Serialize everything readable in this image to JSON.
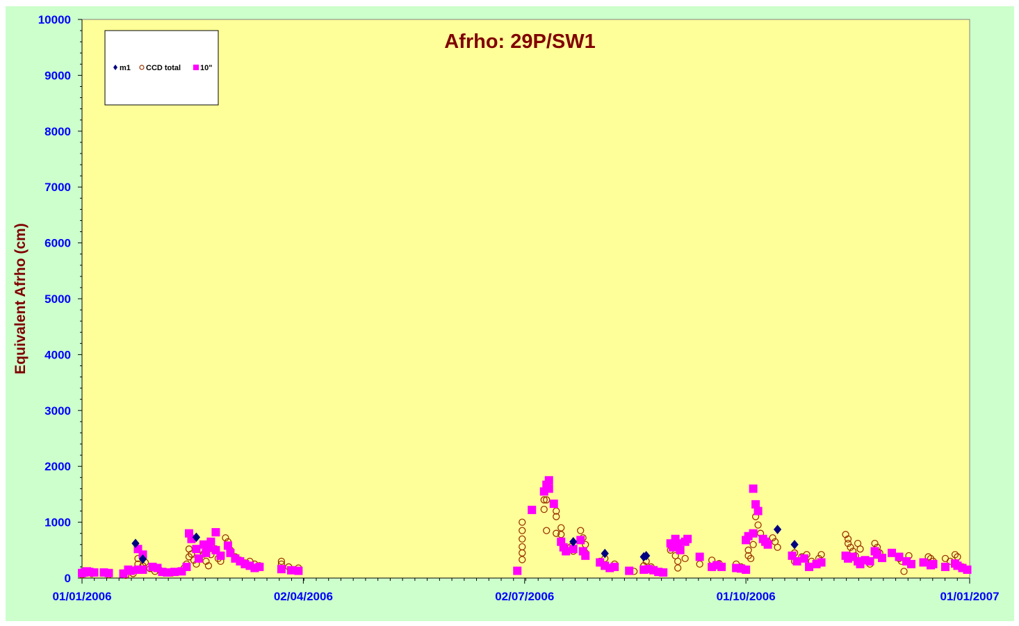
{
  "colors": {
    "chart_background": "#ccffcc",
    "plot_background": "#ffff99",
    "title": "#800000",
    "axis_label": "#800000",
    "tick_label": "#0000ff",
    "m1": "#000080",
    "ccd_total": "#993300",
    "ten_inch": "#ff00ff"
  },
  "chart_data": {
    "type": "scatter",
    "title": "Afrho: 29P/SW1",
    "xlabel": "",
    "ylabel": "Equivalent Afrho (cm)",
    "xlim": [
      "2006-01-01",
      "2007-01-01"
    ],
    "ylim": [
      0,
      10000
    ],
    "x_ticks": [
      "01/01/2006",
      "02/04/2006",
      "02/07/2006",
      "01/10/2006",
      "01/01/2007"
    ],
    "y_ticks": [
      "0",
      "1000",
      "2000",
      "3000",
      "4000",
      "5000",
      "6000",
      "7000",
      "8000",
      "9000",
      "10000"
    ],
    "grid": false,
    "legend_position": "top-left",
    "series": [
      {
        "name": "m1",
        "marker": "diamond",
        "color": "#000080",
        "points": [
          [
            "2006-01-23",
            620
          ],
          [
            "2006-01-26",
            340
          ],
          [
            "2006-02-17",
            730
          ],
          [
            "2006-07-22",
            650
          ],
          [
            "2006-08-04",
            440
          ],
          [
            "2006-08-20",
            380
          ],
          [
            "2006-08-21",
            400
          ],
          [
            "2006-10-14",
            870
          ],
          [
            "2006-10-21",
            600
          ]
        ]
      },
      {
        "name": "CCD total",
        "marker": "circle",
        "color": "#993300",
        "points": [
          [
            "2006-01-01",
            60
          ],
          [
            "2006-01-03",
            90
          ],
          [
            "2006-01-05",
            80
          ],
          [
            "2006-01-06",
            110
          ],
          [
            "2006-01-12",
            60
          ],
          [
            "2006-01-19",
            50
          ],
          [
            "2006-01-22",
            80
          ],
          [
            "2006-01-24",
            250
          ],
          [
            "2006-01-24",
            350
          ],
          [
            "2006-01-26",
            150
          ],
          [
            "2006-01-26",
            220
          ],
          [
            "2006-01-27",
            280
          ],
          [
            "2006-01-29",
            170
          ],
          [
            "2006-01-31",
            120
          ],
          [
            "2006-02-02",
            140
          ],
          [
            "2006-02-04",
            100
          ],
          [
            "2006-02-07",
            90
          ],
          [
            "2006-02-10",
            110
          ],
          [
            "2006-02-12",
            180
          ],
          [
            "2006-02-13",
            250
          ],
          [
            "2006-02-14",
            380
          ],
          [
            "2006-02-14",
            520
          ],
          [
            "2006-02-15",
            430
          ],
          [
            "2006-02-16",
            320
          ],
          [
            "2006-02-17",
            250
          ],
          [
            "2006-02-19",
            500
          ],
          [
            "2006-02-20",
            430
          ],
          [
            "2006-02-21",
            300
          ],
          [
            "2006-02-22",
            220
          ],
          [
            "2006-02-23",
            420
          ],
          [
            "2006-02-25",
            520
          ],
          [
            "2006-02-26",
            350
          ],
          [
            "2006-02-27",
            300
          ],
          [
            "2006-03-01",
            720
          ],
          [
            "2006-03-02",
            650
          ],
          [
            "2006-03-03",
            500
          ],
          [
            "2006-03-05",
            380
          ],
          [
            "2006-03-07",
            320
          ],
          [
            "2006-03-09",
            270
          ],
          [
            "2006-03-11",
            300
          ],
          [
            "2006-03-13",
            250
          ],
          [
            "2006-03-15",
            220
          ],
          [
            "2006-03-24",
            300
          ],
          [
            "2006-03-24",
            250
          ],
          [
            "2006-03-27",
            200
          ],
          [
            "2006-03-31",
            180
          ],
          [
            "2006-07-01",
            1000
          ],
          [
            "2006-07-01",
            850
          ],
          [
            "2006-07-01",
            700
          ],
          [
            "2006-07-01",
            560
          ],
          [
            "2006-07-01",
            450
          ],
          [
            "2006-07-01",
            330
          ],
          [
            "2006-07-10",
            1400
          ],
          [
            "2006-07-10",
            1230
          ],
          [
            "2006-07-11",
            850
          ],
          [
            "2006-07-11",
            1400
          ],
          [
            "2006-07-15",
            1200
          ],
          [
            "2006-07-15",
            1100
          ],
          [
            "2006-07-15",
            800
          ],
          [
            "2006-07-17",
            900
          ],
          [
            "2006-07-17",
            780
          ],
          [
            "2006-07-21",
            560
          ],
          [
            "2006-07-22",
            480
          ],
          [
            "2006-07-25",
            850
          ],
          [
            "2006-07-26",
            720
          ],
          [
            "2006-07-27",
            600
          ],
          [
            "2006-07-27",
            450
          ],
          [
            "2006-08-02",
            300
          ],
          [
            "2006-08-04",
            350
          ],
          [
            "2006-08-08",
            250
          ],
          [
            "2006-08-16",
            120
          ],
          [
            "2006-08-20",
            220
          ],
          [
            "2006-08-21",
            300
          ],
          [
            "2006-08-23",
            200
          ],
          [
            "2006-08-27",
            120
          ],
          [
            "2006-08-31",
            500
          ],
          [
            "2006-09-02",
            400
          ],
          [
            "2006-09-03",
            300
          ],
          [
            "2006-09-03",
            180
          ],
          [
            "2006-09-06",
            350
          ],
          [
            "2006-09-12",
            250
          ],
          [
            "2006-09-17",
            320
          ],
          [
            "2006-09-20",
            260
          ],
          [
            "2006-09-21",
            200
          ],
          [
            "2006-09-27",
            250
          ],
          [
            "2006-09-29",
            200
          ],
          [
            "2006-10-02",
            500
          ],
          [
            "2006-10-02",
            400
          ],
          [
            "2006-10-03",
            350
          ],
          [
            "2006-10-04",
            600
          ],
          [
            "2006-10-05",
            1100
          ],
          [
            "2006-10-06",
            950
          ],
          [
            "2006-10-07",
            800
          ],
          [
            "2006-10-08",
            700
          ],
          [
            "2006-10-10",
            600
          ],
          [
            "2006-10-12",
            720
          ],
          [
            "2006-10-13",
            650
          ],
          [
            "2006-10-14",
            550
          ],
          [
            "2006-10-21",
            450
          ],
          [
            "2006-10-21",
            300
          ],
          [
            "2006-10-24",
            380
          ],
          [
            "2006-10-26",
            420
          ],
          [
            "2006-10-28",
            300
          ],
          [
            "2006-10-31",
            350
          ],
          [
            "2006-11-01",
            420
          ],
          [
            "2006-11-11",
            780
          ],
          [
            "2006-11-12",
            700
          ],
          [
            "2006-11-12",
            620
          ],
          [
            "2006-11-13",
            550
          ],
          [
            "2006-11-14",
            480
          ],
          [
            "2006-11-15",
            400
          ],
          [
            "2006-11-16",
            620
          ],
          [
            "2006-11-17",
            520
          ],
          [
            "2006-11-20",
            300
          ],
          [
            "2006-11-21",
            250
          ],
          [
            "2006-11-23",
            620
          ],
          [
            "2006-11-24",
            550
          ],
          [
            "2006-11-25",
            450
          ],
          [
            "2006-12-03",
            350
          ],
          [
            "2006-12-04",
            300
          ],
          [
            "2006-12-05",
            120
          ],
          [
            "2006-12-07",
            400
          ],
          [
            "2006-12-15",
            380
          ],
          [
            "2006-12-16",
            350
          ],
          [
            "2006-12-17",
            300
          ],
          [
            "2006-12-22",
            350
          ],
          [
            "2006-12-24",
            300
          ],
          [
            "2006-12-26",
            420
          ],
          [
            "2006-12-27",
            380
          ],
          [
            "2006-12-29",
            200
          ],
          [
            "2006-12-31",
            160
          ]
        ]
      },
      {
        "name": "10\"",
        "marker": "square",
        "color": "#ff00ff",
        "points": [
          [
            "2006-01-01",
            90
          ],
          [
            "2006-01-02",
            100
          ],
          [
            "2006-01-03",
            120
          ],
          [
            "2006-01-04",
            110
          ],
          [
            "2006-01-06",
            100
          ],
          [
            "2006-01-10",
            100
          ],
          [
            "2006-01-12",
            90
          ],
          [
            "2006-01-18",
            80
          ],
          [
            "2006-01-20",
            150
          ],
          [
            "2006-01-21",
            130
          ],
          [
            "2006-01-24",
            520
          ],
          [
            "2006-01-26",
            420
          ],
          [
            "2006-01-24",
            150
          ],
          [
            "2006-01-26",
            150
          ],
          [
            "2006-01-30",
            200
          ],
          [
            "2006-02-01",
            180
          ],
          [
            "2006-02-03",
            110
          ],
          [
            "2006-02-05",
            100
          ],
          [
            "2006-02-08",
            110
          ],
          [
            "2006-02-11",
            120
          ],
          [
            "2006-02-13",
            200
          ],
          [
            "2006-02-14",
            800
          ],
          [
            "2006-02-15",
            700
          ],
          [
            "2006-02-17",
            520
          ],
          [
            "2006-02-18",
            350
          ],
          [
            "2006-02-20",
            600
          ],
          [
            "2006-02-21",
            450
          ],
          [
            "2006-02-22",
            550
          ],
          [
            "2006-02-23",
            650
          ],
          [
            "2006-02-25",
            820
          ],
          [
            "2006-02-25",
            500
          ],
          [
            "2006-02-27",
            400
          ],
          [
            "2006-03-02",
            580
          ],
          [
            "2006-03-03",
            450
          ],
          [
            "2006-03-05",
            350
          ],
          [
            "2006-03-07",
            300
          ],
          [
            "2006-03-09",
            250
          ],
          [
            "2006-03-11",
            220
          ],
          [
            "2006-03-13",
            180
          ],
          [
            "2006-03-15",
            200
          ],
          [
            "2006-03-24",
            160
          ],
          [
            "2006-03-28",
            140
          ],
          [
            "2006-03-31",
            130
          ],
          [
            "2006-06-29",
            130
          ],
          [
            "2006-07-05",
            1220
          ],
          [
            "2006-07-10",
            1550
          ],
          [
            "2006-07-11",
            1670
          ],
          [
            "2006-07-12",
            1600
          ],
          [
            "2006-07-12",
            1750
          ],
          [
            "2006-07-14",
            1330
          ],
          [
            "2006-07-17",
            650
          ],
          [
            "2006-07-18",
            550
          ],
          [
            "2006-07-19",
            480
          ],
          [
            "2006-07-22",
            520
          ],
          [
            "2006-07-25",
            680
          ],
          [
            "2006-07-26",
            480
          ],
          [
            "2006-07-27",
            400
          ],
          [
            "2006-08-02",
            280
          ],
          [
            "2006-08-04",
            220
          ],
          [
            "2006-08-06",
            180
          ],
          [
            "2006-08-08",
            200
          ],
          [
            "2006-08-14",
            130
          ],
          [
            "2006-08-20",
            150
          ],
          [
            "2006-08-22",
            160
          ],
          [
            "2006-08-24",
            140
          ],
          [
            "2006-08-26",
            110
          ],
          [
            "2006-08-28",
            100
          ],
          [
            "2006-08-31",
            620
          ],
          [
            "2006-09-01",
            550
          ],
          [
            "2006-09-02",
            700
          ],
          [
            "2006-09-03",
            620
          ],
          [
            "2006-09-04",
            500
          ],
          [
            "2006-09-06",
            650
          ],
          [
            "2006-09-07",
            700
          ],
          [
            "2006-09-12",
            380
          ],
          [
            "2006-09-17",
            200
          ],
          [
            "2006-09-19",
            230
          ],
          [
            "2006-09-21",
            200
          ],
          [
            "2006-09-27",
            180
          ],
          [
            "2006-09-29",
            170
          ],
          [
            "2006-10-01",
            150
          ],
          [
            "2006-10-01",
            680
          ],
          [
            "2006-10-02",
            750
          ],
          [
            "2006-10-04",
            1600
          ],
          [
            "2006-10-05",
            1320
          ],
          [
            "2006-10-06",
            1200
          ],
          [
            "2006-10-04",
            800
          ],
          [
            "2006-10-08",
            700
          ],
          [
            "2006-10-09",
            650
          ],
          [
            "2006-10-10",
            600
          ],
          [
            "2006-10-20",
            400
          ],
          [
            "2006-10-22",
            300
          ],
          [
            "2006-10-25",
            350
          ],
          [
            "2006-10-27",
            200
          ],
          [
            "2006-10-30",
            250
          ],
          [
            "2006-11-01",
            280
          ],
          [
            "2006-11-11",
            400
          ],
          [
            "2006-11-12",
            350
          ],
          [
            "2006-11-14",
            380
          ],
          [
            "2006-11-16",
            300
          ],
          [
            "2006-11-17",
            250
          ],
          [
            "2006-11-19",
            320
          ],
          [
            "2006-11-21",
            300
          ],
          [
            "2006-11-23",
            480
          ],
          [
            "2006-11-24",
            420
          ],
          [
            "2006-11-26",
            360
          ],
          [
            "2006-11-30",
            450
          ],
          [
            "2006-12-03",
            380
          ],
          [
            "2006-12-06",
            300
          ],
          [
            "2006-12-08",
            250
          ],
          [
            "2006-12-13",
            280
          ],
          [
            "2006-12-16",
            230
          ],
          [
            "2006-12-17",
            250
          ],
          [
            "2006-12-22",
            200
          ],
          [
            "2006-12-26",
            260
          ],
          [
            "2006-12-27",
            220
          ],
          [
            "2006-12-29",
            180
          ],
          [
            "2006-12-31",
            150
          ]
        ]
      }
    ]
  }
}
